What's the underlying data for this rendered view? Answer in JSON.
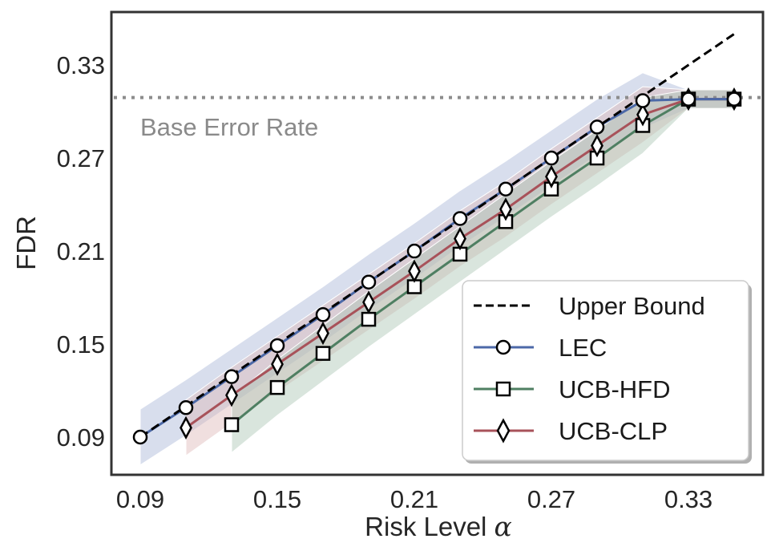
{
  "chart_data": {
    "type": "line",
    "title": "",
    "xlabel": "Risk Level α",
    "xlabel_text": "Risk Level ",
    "xlabel_symbol": "α",
    "ylabel": "FDR",
    "xlim": [
      0.079,
      0.364
    ],
    "ylim": [
      0.066,
      0.364
    ],
    "grid": false,
    "legend_position": "lower right",
    "x_ticks": [
      0.09,
      0.15,
      0.21,
      0.27,
      0.33
    ],
    "x_tick_labels": [
      "0.09",
      "0.15",
      "0.21",
      "0.27",
      "0.33"
    ],
    "y_ticks": [
      0.09,
      0.15,
      0.21,
      0.27,
      0.33
    ],
    "y_tick_labels": [
      "0.09",
      "0.15",
      "0.21",
      "0.27",
      "0.33"
    ],
    "annotations": [
      {
        "text": "Base Error Rate",
        "type": "horizontal-dotted-line",
        "y": 0.309,
        "color": "#8c8c8c"
      }
    ],
    "series": [
      {
        "name": "Upper Bound",
        "style": "dashed",
        "color": "#000000",
        "marker": "none",
        "x": [
          0.09,
          0.35
        ],
        "values": [
          0.09,
          0.35
        ]
      },
      {
        "name": "LEC",
        "style": "solid",
        "color": "#4c69a8",
        "band_color": "#a9b6d6",
        "marker": "circle",
        "x": [
          0.09,
          0.11,
          0.13,
          0.15,
          0.17,
          0.19,
          0.21,
          0.23,
          0.25,
          0.27,
          0.29,
          0.31,
          0.33,
          0.35
        ],
        "values": [
          0.09,
          0.109,
          0.129,
          0.149,
          0.169,
          0.19,
          0.21,
          0.231,
          0.25,
          0.27,
          0.29,
          0.307,
          0.308,
          0.308
        ],
        "band": 0.018
      },
      {
        "name": "UCB-HFD",
        "style": "solid",
        "color": "#4f7f62",
        "band_color": "#aac6b4",
        "marker": "square",
        "x": [
          0.13,
          0.15,
          0.17,
          0.19,
          0.21,
          0.23,
          0.25,
          0.27,
          0.29,
          0.31,
          0.33,
          0.35
        ],
        "values": [
          0.098,
          0.122,
          0.144,
          0.166,
          0.187,
          0.208,
          0.229,
          0.25,
          0.27,
          0.291,
          0.308,
          0.308
        ],
        "band": 0.018
      },
      {
        "name": "UCB-CLP",
        "style": "solid",
        "color": "#a8525a",
        "band_color": "#ddb7b9",
        "marker": "diamond",
        "x": [
          0.11,
          0.13,
          0.15,
          0.17,
          0.19,
          0.21,
          0.23,
          0.25,
          0.27,
          0.29,
          0.31,
          0.33,
          0.35
        ],
        "values": [
          0.096,
          0.117,
          0.137,
          0.157,
          0.177,
          0.197,
          0.218,
          0.237,
          0.258,
          0.278,
          0.298,
          0.308,
          0.308
        ],
        "band": 0.018
      }
    ]
  },
  "legend": {
    "items": [
      {
        "label": "Upper Bound"
      },
      {
        "label": "LEC"
      },
      {
        "label": "UCB-HFD"
      },
      {
        "label": "UCB-CLP"
      }
    ]
  },
  "annotation": {
    "base_error_label": "Base Error Rate"
  }
}
